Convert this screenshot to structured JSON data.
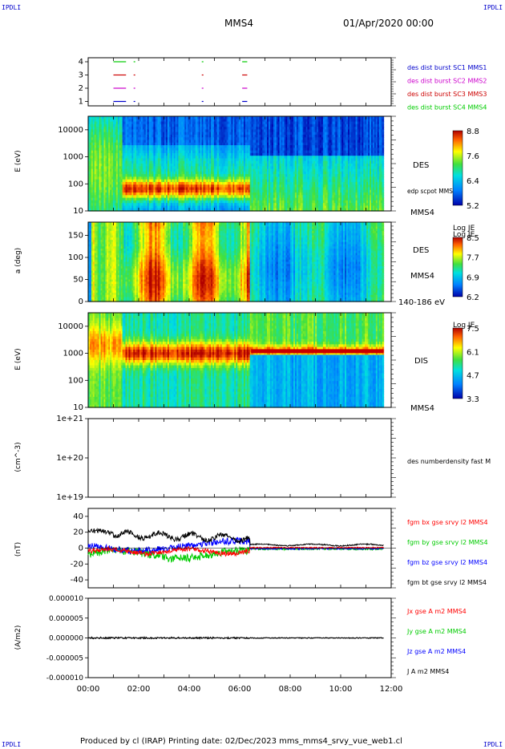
{
  "corners": {
    "tl": "IPDLI",
    "tr": "IPDLI",
    "bl": "IPDLI",
    "br": "IPDLI"
  },
  "header": {
    "spacecraft": "MMS4",
    "date": "01/Apr/2020 00:00"
  },
  "footer": {
    "text": "Produced by cl (IRAP)   Printing date: 02/Dec/2023   mms_mms4_srvy_vue_web1.cl"
  },
  "colors": {
    "sc1": "#0000cc",
    "sc2": "#cc00cc",
    "sc3": "#cc0000",
    "sc4": "#00cc00",
    "bx": "#ff0000",
    "by": "#00cc00",
    "bz": "#0000ff",
    "bt": "#000000"
  },
  "time_axis": {
    "ticks": [
      "00:00",
      "02:00",
      "04:00",
      "06:00",
      "08:00",
      "10:00",
      "12:00"
    ],
    "start_hour": 0,
    "end_hour": 12
  },
  "chart_data": [
    {
      "type": "scatter",
      "panel": "availability",
      "yticks": [
        "4",
        "3",
        "2",
        "1"
      ],
      "series": [
        {
          "name": "des dist burst SC1 MMS1",
          "level": 1
        },
        {
          "name": "des dist burst SC2 MMS2",
          "level": 2
        },
        {
          "name": "des dist burst SC3 MMS3",
          "level": 3
        },
        {
          "name": "des dist burst SC4 MMS4",
          "level": 4
        }
      ],
      "burst_hours": [
        [
          1.0,
          1.5
        ],
        [
          1.8,
          1.82
        ],
        [
          4.5,
          4.52
        ],
        [
          6.1,
          6.3
        ]
      ]
    },
    {
      "type": "heatmap",
      "panel": "des-energy",
      "ylabel": "E (eV)",
      "yscale": "log",
      "yticks": [
        "10000",
        "1000",
        "100",
        "10"
      ],
      "labels": [
        "DES",
        "edp scpot MMS4",
        "MMS4"
      ],
      "colorbar": {
        "title": "Log JE",
        "ticks": [
          "8.8",
          "7.6",
          "6.4",
          "5.2"
        ],
        "range": [
          5.2,
          8.8
        ]
      }
    },
    {
      "type": "heatmap",
      "panel": "des-pitch",
      "ylabel": "a (deg)",
      "yticks": [
        "150",
        "100",
        "50",
        "0"
      ],
      "ylim": [
        0,
        180
      ],
      "labels": [
        "DES",
        "MMS4",
        "140-186 eV"
      ],
      "colorbar": {
        "title": "Log JE",
        "ticks": [
          "8.5",
          "7.7",
          "6.9",
          "6.2"
        ],
        "range": [
          6.2,
          8.5
        ]
      }
    },
    {
      "type": "heatmap",
      "panel": "dis-energy",
      "ylabel": "E (eV)",
      "yscale": "log",
      "yticks": [
        "10000",
        "1000",
        "100",
        "10"
      ],
      "labels": [
        "DIS",
        "MMS4"
      ],
      "colorbar": {
        "title": "Log JE",
        "ticks": [
          "7.5",
          "6.1",
          "4.7",
          "3.3"
        ],
        "range": [
          3.3,
          7.5
        ]
      }
    },
    {
      "type": "line",
      "panel": "density",
      "ylabel": "(cm^-3)",
      "yscale": "log",
      "yticks": [
        "1e+21",
        "1e+20",
        "1e+19"
      ],
      "series": [
        {
          "name": "des numberdensity fast M",
          "values": []
        }
      ]
    },
    {
      "type": "line",
      "panel": "magnetic-field",
      "ylabel": "(nT)",
      "yticks": [
        "40",
        "20",
        "0",
        "-20",
        "-40"
      ],
      "ylim": [
        -50,
        50
      ],
      "series": [
        {
          "name": "fgm bx gse srvy l2 MMS4",
          "color": "#ff0000"
        },
        {
          "name": "fgm by gse srvy l2 MMS4",
          "color": "#00cc00"
        },
        {
          "name": "fgm bz gse srvy l2 MMS4",
          "color": "#0000ff"
        },
        {
          "name": "fgm bt gse srvy l2 MMS4",
          "color": "#000000"
        }
      ]
    },
    {
      "type": "line",
      "panel": "current",
      "ylabel": "(A/m2)",
      "yticks": [
        "0.000010",
        "0.000005",
        "0.000000",
        "-0.000005",
        "-0.000010"
      ],
      "ylim": [
        -1e-05,
        1e-05
      ],
      "series": [
        {
          "name": "Jx gse A m2 MMS4",
          "color": "#ff0000"
        },
        {
          "name": "Jy gse A m2 MMS4",
          "color": "#00cc00"
        },
        {
          "name": "Jz gse A m2 MMS4",
          "color": "#0000ff"
        },
        {
          "name": "J A m2 MMS4",
          "color": "#000000"
        }
      ]
    }
  ]
}
